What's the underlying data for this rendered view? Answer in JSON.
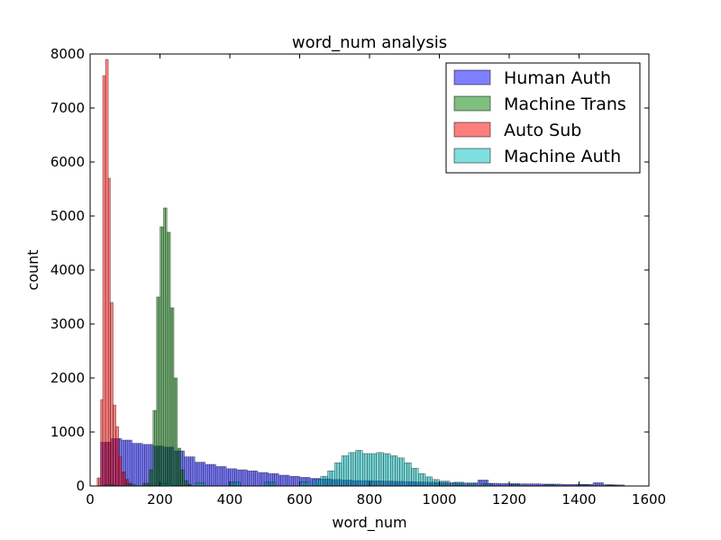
{
  "chart_data": {
    "type": "bar",
    "title": "word_num analysis",
    "xlabel": "word_num",
    "ylabel": "count",
    "xlim": [
      0,
      1600
    ],
    "ylim": [
      0,
      8000
    ],
    "x_ticks": [
      "0",
      "200",
      "400",
      "600",
      "800",
      "1000",
      "1200",
      "1400",
      "1600"
    ],
    "y_ticks": [
      "0",
      "1000",
      "2000",
      "3000",
      "4000",
      "5000",
      "6000",
      "7000",
      "8000"
    ],
    "legend_position": "top-right",
    "series": [
      {
        "name": "Human Auth",
        "color": "#0000ff",
        "bins": [
          [
            30,
            810
          ],
          [
            60,
            880
          ],
          [
            90,
            850
          ],
          [
            120,
            790
          ],
          [
            150,
            770
          ],
          [
            180,
            740
          ],
          [
            210,
            720
          ],
          [
            240,
            650
          ],
          [
            270,
            540
          ],
          [
            300,
            440
          ],
          [
            330,
            400
          ],
          [
            360,
            360
          ],
          [
            390,
            320
          ],
          [
            420,
            300
          ],
          [
            450,
            280
          ],
          [
            480,
            250
          ],
          [
            510,
            230
          ],
          [
            540,
            200
          ],
          [
            570,
            180
          ],
          [
            600,
            160
          ],
          [
            630,
            140
          ],
          [
            660,
            130
          ],
          [
            690,
            120
          ],
          [
            720,
            110
          ],
          [
            750,
            100
          ],
          [
            780,
            100
          ],
          [
            810,
            95
          ],
          [
            840,
            90
          ],
          [
            870,
            85
          ],
          [
            900,
            80
          ],
          [
            930,
            75
          ],
          [
            960,
            70
          ],
          [
            990,
            65
          ],
          [
            1020,
            60
          ],
          [
            1050,
            55
          ],
          [
            1080,
            55
          ],
          [
            1110,
            110
          ],
          [
            1140,
            50
          ],
          [
            1170,
            45
          ],
          [
            1200,
            45
          ],
          [
            1230,
            40
          ],
          [
            1260,
            40
          ],
          [
            1290,
            35
          ],
          [
            1320,
            35
          ],
          [
            1350,
            30
          ],
          [
            1380,
            30
          ],
          [
            1410,
            30
          ],
          [
            1440,
            60
          ],
          [
            1470,
            25
          ],
          [
            1500,
            20
          ]
        ]
      },
      {
        "name": "Machine Trans",
        "color": "#008000",
        "bins": [
          [
            150,
            50
          ],
          [
            170,
            300
          ],
          [
            180,
            1400
          ],
          [
            190,
            3500
          ],
          [
            200,
            4800
          ],
          [
            210,
            5150
          ],
          [
            220,
            4700
          ],
          [
            230,
            3300
          ],
          [
            240,
            2000
          ],
          [
            250,
            700
          ],
          [
            260,
            300
          ],
          [
            270,
            100
          ],
          [
            280,
            30
          ]
        ]
      },
      {
        "name": "Auto Sub",
        "color": "#ff0000",
        "bins": [
          [
            20,
            150
          ],
          [
            30,
            1600
          ],
          [
            36,
            7600
          ],
          [
            44,
            7900
          ],
          [
            52,
            5700
          ],
          [
            58,
            3400
          ],
          [
            66,
            1500
          ],
          [
            74,
            1100
          ],
          [
            82,
            550
          ],
          [
            90,
            260
          ],
          [
            100,
            120
          ],
          [
            110,
            50
          ]
        ]
      },
      {
        "name": "Machine Auth",
        "color": "#00bfbf",
        "bins": [
          [
            40,
            20
          ],
          [
            100,
            30
          ],
          [
            200,
            40
          ],
          [
            300,
            60
          ],
          [
            400,
            70
          ],
          [
            500,
            70
          ],
          [
            600,
            80
          ],
          [
            640,
            120
          ],
          [
            660,
            180
          ],
          [
            680,
            280
          ],
          [
            700,
            430
          ],
          [
            720,
            560
          ],
          [
            740,
            620
          ],
          [
            760,
            660
          ],
          [
            780,
            600
          ],
          [
            800,
            600
          ],
          [
            820,
            620
          ],
          [
            840,
            600
          ],
          [
            860,
            560
          ],
          [
            880,
            520
          ],
          [
            900,
            430
          ],
          [
            920,
            330
          ],
          [
            940,
            230
          ],
          [
            960,
            170
          ],
          [
            980,
            120
          ],
          [
            1000,
            90
          ],
          [
            1040,
            70
          ],
          [
            1080,
            50
          ],
          [
            1120,
            40
          ],
          [
            1200,
            30
          ],
          [
            1300,
            25
          ],
          [
            1400,
            20
          ],
          [
            1480,
            15
          ]
        ]
      }
    ]
  }
}
